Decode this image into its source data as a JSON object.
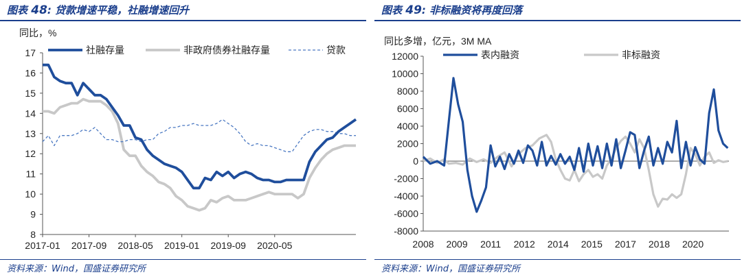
{
  "left": {
    "title_prefix": "图表",
    "title_num": "48",
    "title_colon": ":",
    "title_text": "贷款增速平稳，社融增速回升",
    "source": "资料来源：Wind，国盛证券研究所",
    "chart_data": {
      "type": "line",
      "ylabel": "同比，%",
      "ylim": [
        8,
        17
      ],
      "yticks": [
        "8",
        "9",
        "10",
        "11",
        "12",
        "13",
        "14",
        "15",
        "16",
        "17"
      ],
      "xticks": [
        "2017-01",
        "2017-09",
        "2018-05",
        "2019-01",
        "2019-09",
        "2020-05"
      ],
      "x_start": "2017-01",
      "legend_position": "top",
      "series": [
        {
          "name": "社融存量",
          "color": "#1f4e9c",
          "style": "solid-thick",
          "values": [
            16.4,
            16.4,
            15.8,
            15.6,
            15.5,
            15.5,
            14.9,
            15.5,
            15.2,
            14.9,
            14.9,
            14.7,
            14.3,
            13.9,
            13.4,
            13.4,
            12.8,
            12.7,
            12.2,
            11.9,
            11.7,
            11.5,
            11.4,
            11.3,
            11.1,
            10.7,
            10.3,
            10.3,
            10.8,
            10.7,
            11.1,
            10.9,
            11.1,
            10.8,
            11.0,
            11.1,
            11.0,
            10.8,
            10.7,
            10.7,
            10.6,
            10.6,
            10.7,
            10.7,
            10.7,
            10.7,
            11.6,
            12.1,
            12.4,
            12.7,
            12.8,
            13.1,
            13.3,
            13.5,
            13.7
          ]
        },
        {
          "name": "非政府债券社融存量",
          "color": "#c8c8c8",
          "style": "solid-thick",
          "values": [
            14.1,
            14.1,
            14.0,
            14.3,
            14.4,
            14.5,
            14.5,
            14.7,
            14.6,
            14.6,
            14.6,
            14.4,
            14.1,
            13.5,
            12.2,
            11.9,
            11.9,
            11.4,
            11.1,
            10.9,
            10.6,
            10.5,
            10.3,
            9.9,
            9.7,
            9.4,
            9.3,
            9.2,
            9.3,
            9.7,
            9.6,
            9.8,
            9.9,
            9.7,
            9.7,
            9.7,
            9.8,
            9.9,
            10.0,
            10.1,
            10.0,
            10.0,
            10.0,
            10.0,
            9.8,
            10.0,
            10.8,
            11.3,
            11.7,
            12.0,
            12.2,
            12.3,
            12.4,
            12.4,
            12.4
          ]
        },
        {
          "name": "贷款",
          "color": "#4a78c2",
          "style": "dashed",
          "values": [
            12.6,
            12.9,
            12.4,
            12.9,
            12.9,
            12.9,
            13.0,
            13.2,
            13.1,
            13.3,
            13.0,
            12.7,
            12.7,
            12.6,
            12.6,
            12.7,
            12.7,
            12.6,
            12.7,
            12.7,
            13.0,
            13.1,
            13.3,
            13.3,
            13.4,
            13.4,
            13.5,
            13.4,
            13.4,
            13.4,
            13.5,
            13.7,
            13.5,
            13.3,
            13.0,
            12.6,
            12.4,
            12.5,
            12.4,
            12.4,
            12.3,
            12.2,
            12.1,
            12.1,
            12.5,
            12.9,
            13.1,
            13.2,
            13.2,
            13.1,
            13.1,
            13.0,
            13.0,
            12.9,
            12.9
          ]
        }
      ]
    }
  },
  "right": {
    "title_prefix": "图表",
    "title_num": "49",
    "title_colon": ":",
    "title_text": "非标融资将再度回落",
    "source": "资料来源：Wind，国盛证券研究所",
    "chart_data": {
      "type": "line",
      "ylabel": "同比多增，亿元，3M MA",
      "ylim": [
        -8000,
        12000
      ],
      "yticks": [
        "-8000",
        "-6000",
        "-4000",
        "-2000",
        "0",
        "2000",
        "4000",
        "6000",
        "8000",
        "10000",
        "12000"
      ],
      "xticks": [
        "2008",
        "2009",
        "2011",
        "2012",
        "2014",
        "2015",
        "2017",
        "2018",
        "2020"
      ],
      "x_start": "2008-01",
      "x_end": "2020-12",
      "legend_position": "top",
      "series": [
        {
          "name": "表内融资",
          "color": "#1f4e9c",
          "style": "solid-thick",
          "values": [
            [
              2008.0,
              500
            ],
            [
              2008.3,
              -300
            ],
            [
              2008.6,
              0
            ],
            [
              2008.9,
              -500
            ],
            [
              2009.1,
              4500
            ],
            [
              2009.3,
              9500
            ],
            [
              2009.5,
              6500
            ],
            [
              2009.7,
              4500
            ],
            [
              2009.9,
              -1000
            ],
            [
              2010.1,
              -4000
            ],
            [
              2010.3,
              -5800
            ],
            [
              2010.5,
              -4500
            ],
            [
              2010.7,
              -3000
            ],
            [
              2010.9,
              1800
            ],
            [
              2011.1,
              -600
            ],
            [
              2011.3,
              500
            ],
            [
              2011.5,
              -900
            ],
            [
              2011.7,
              800
            ],
            [
              2011.9,
              -300
            ],
            [
              2012.1,
              1200
            ],
            [
              2012.3,
              -200
            ],
            [
              2012.5,
              1800
            ],
            [
              2012.7,
              1200
            ],
            [
              2012.9,
              -500
            ],
            [
              2013.1,
              2200
            ],
            [
              2013.3,
              -500
            ],
            [
              2013.5,
              600
            ],
            [
              2013.7,
              -400
            ],
            [
              2013.9,
              800
            ],
            [
              2014.1,
              -300
            ],
            [
              2014.3,
              500
            ],
            [
              2014.5,
              -1000
            ],
            [
              2014.7,
              1500
            ],
            [
              2014.9,
              -1200
            ],
            [
              2015.1,
              2000
            ],
            [
              2015.3,
              -500
            ],
            [
              2015.5,
              1700
            ],
            [
              2015.7,
              -800
            ],
            [
              2015.9,
              2000
            ],
            [
              2016.1,
              -500
            ],
            [
              2016.3,
              2500
            ],
            [
              2016.5,
              -800
            ],
            [
              2016.7,
              1200
            ],
            [
              2016.9,
              3300
            ],
            [
              2017.1,
              3000
            ],
            [
              2017.3,
              -800
            ],
            [
              2017.5,
              1200
            ],
            [
              2017.7,
              2800
            ],
            [
              2017.9,
              -500
            ],
            [
              2018.1,
              1500
            ],
            [
              2018.3,
              -300
            ],
            [
              2018.5,
              2200
            ],
            [
              2018.7,
              1000
            ],
            [
              2018.9,
              4600
            ],
            [
              2019.1,
              -800
            ],
            [
              2019.3,
              2200
            ],
            [
              2019.5,
              -500
            ],
            [
              2019.7,
              1600
            ],
            [
              2019.9,
              200
            ],
            [
              2020.1,
              -300
            ],
            [
              2020.3,
              5500
            ],
            [
              2020.5,
              8200
            ],
            [
              2020.7,
              3500
            ],
            [
              2020.9,
              2000
            ],
            [
              2021.1,
              1500
            ]
          ]
        },
        {
          "name": "非标融资",
          "color": "#c8c8c8",
          "style": "solid-thick",
          "values": [
            [
              2008.0,
              0
            ],
            [
              2008.3,
              300
            ],
            [
              2008.6,
              -200
            ],
            [
              2008.9,
              200
            ],
            [
              2009.1,
              -300
            ],
            [
              2009.4,
              -200
            ],
            [
              2009.7,
              -400
            ],
            [
              2010.0,
              300
            ],
            [
              2010.3,
              -100
            ],
            [
              2010.6,
              200
            ],
            [
              2010.9,
              -200
            ],
            [
              2011.2,
              500
            ],
            [
              2011.5,
              1000
            ],
            [
              2011.8,
              -600
            ],
            [
              2012.1,
              800
            ],
            [
              2012.4,
              1500
            ],
            [
              2012.7,
              1800
            ],
            [
              2013.0,
              2600
            ],
            [
              2013.3,
              3000
            ],
            [
              2013.5,
              2200
            ],
            [
              2013.7,
              200
            ],
            [
              2013.9,
              -1000
            ],
            [
              2014.1,
              -2000
            ],
            [
              2014.3,
              -2200
            ],
            [
              2014.5,
              -1000
            ],
            [
              2014.7,
              -2300
            ],
            [
              2014.9,
              -1500
            ],
            [
              2015.1,
              -1000
            ],
            [
              2015.3,
              -1800
            ],
            [
              2015.5,
              -1500
            ],
            [
              2015.7,
              -2000
            ],
            [
              2015.9,
              -500
            ],
            [
              2016.1,
              300
            ],
            [
              2016.3,
              1500
            ],
            [
              2016.5,
              2300
            ],
            [
              2016.7,
              2800
            ],
            [
              2016.9,
              2000
            ],
            [
              2017.1,
              1000
            ],
            [
              2017.3,
              2500
            ],
            [
              2017.5,
              1500
            ],
            [
              2017.7,
              -1000
            ],
            [
              2017.9,
              -3800
            ],
            [
              2018.1,
              -5200
            ],
            [
              2018.3,
              -4300
            ],
            [
              2018.5,
              -4400
            ],
            [
              2018.7,
              -3800
            ],
            [
              2018.9,
              -4200
            ],
            [
              2019.1,
              -3800
            ],
            [
              2019.3,
              -1500
            ],
            [
              2019.5,
              1500
            ],
            [
              2019.7,
              800
            ],
            [
              2019.9,
              -500
            ],
            [
              2020.1,
              500
            ],
            [
              2020.3,
              1000
            ],
            [
              2020.5,
              -200
            ],
            [
              2020.7,
              100
            ],
            [
              2020.9,
              -100
            ],
            [
              2021.1,
              0
            ]
          ]
        }
      ]
    }
  }
}
